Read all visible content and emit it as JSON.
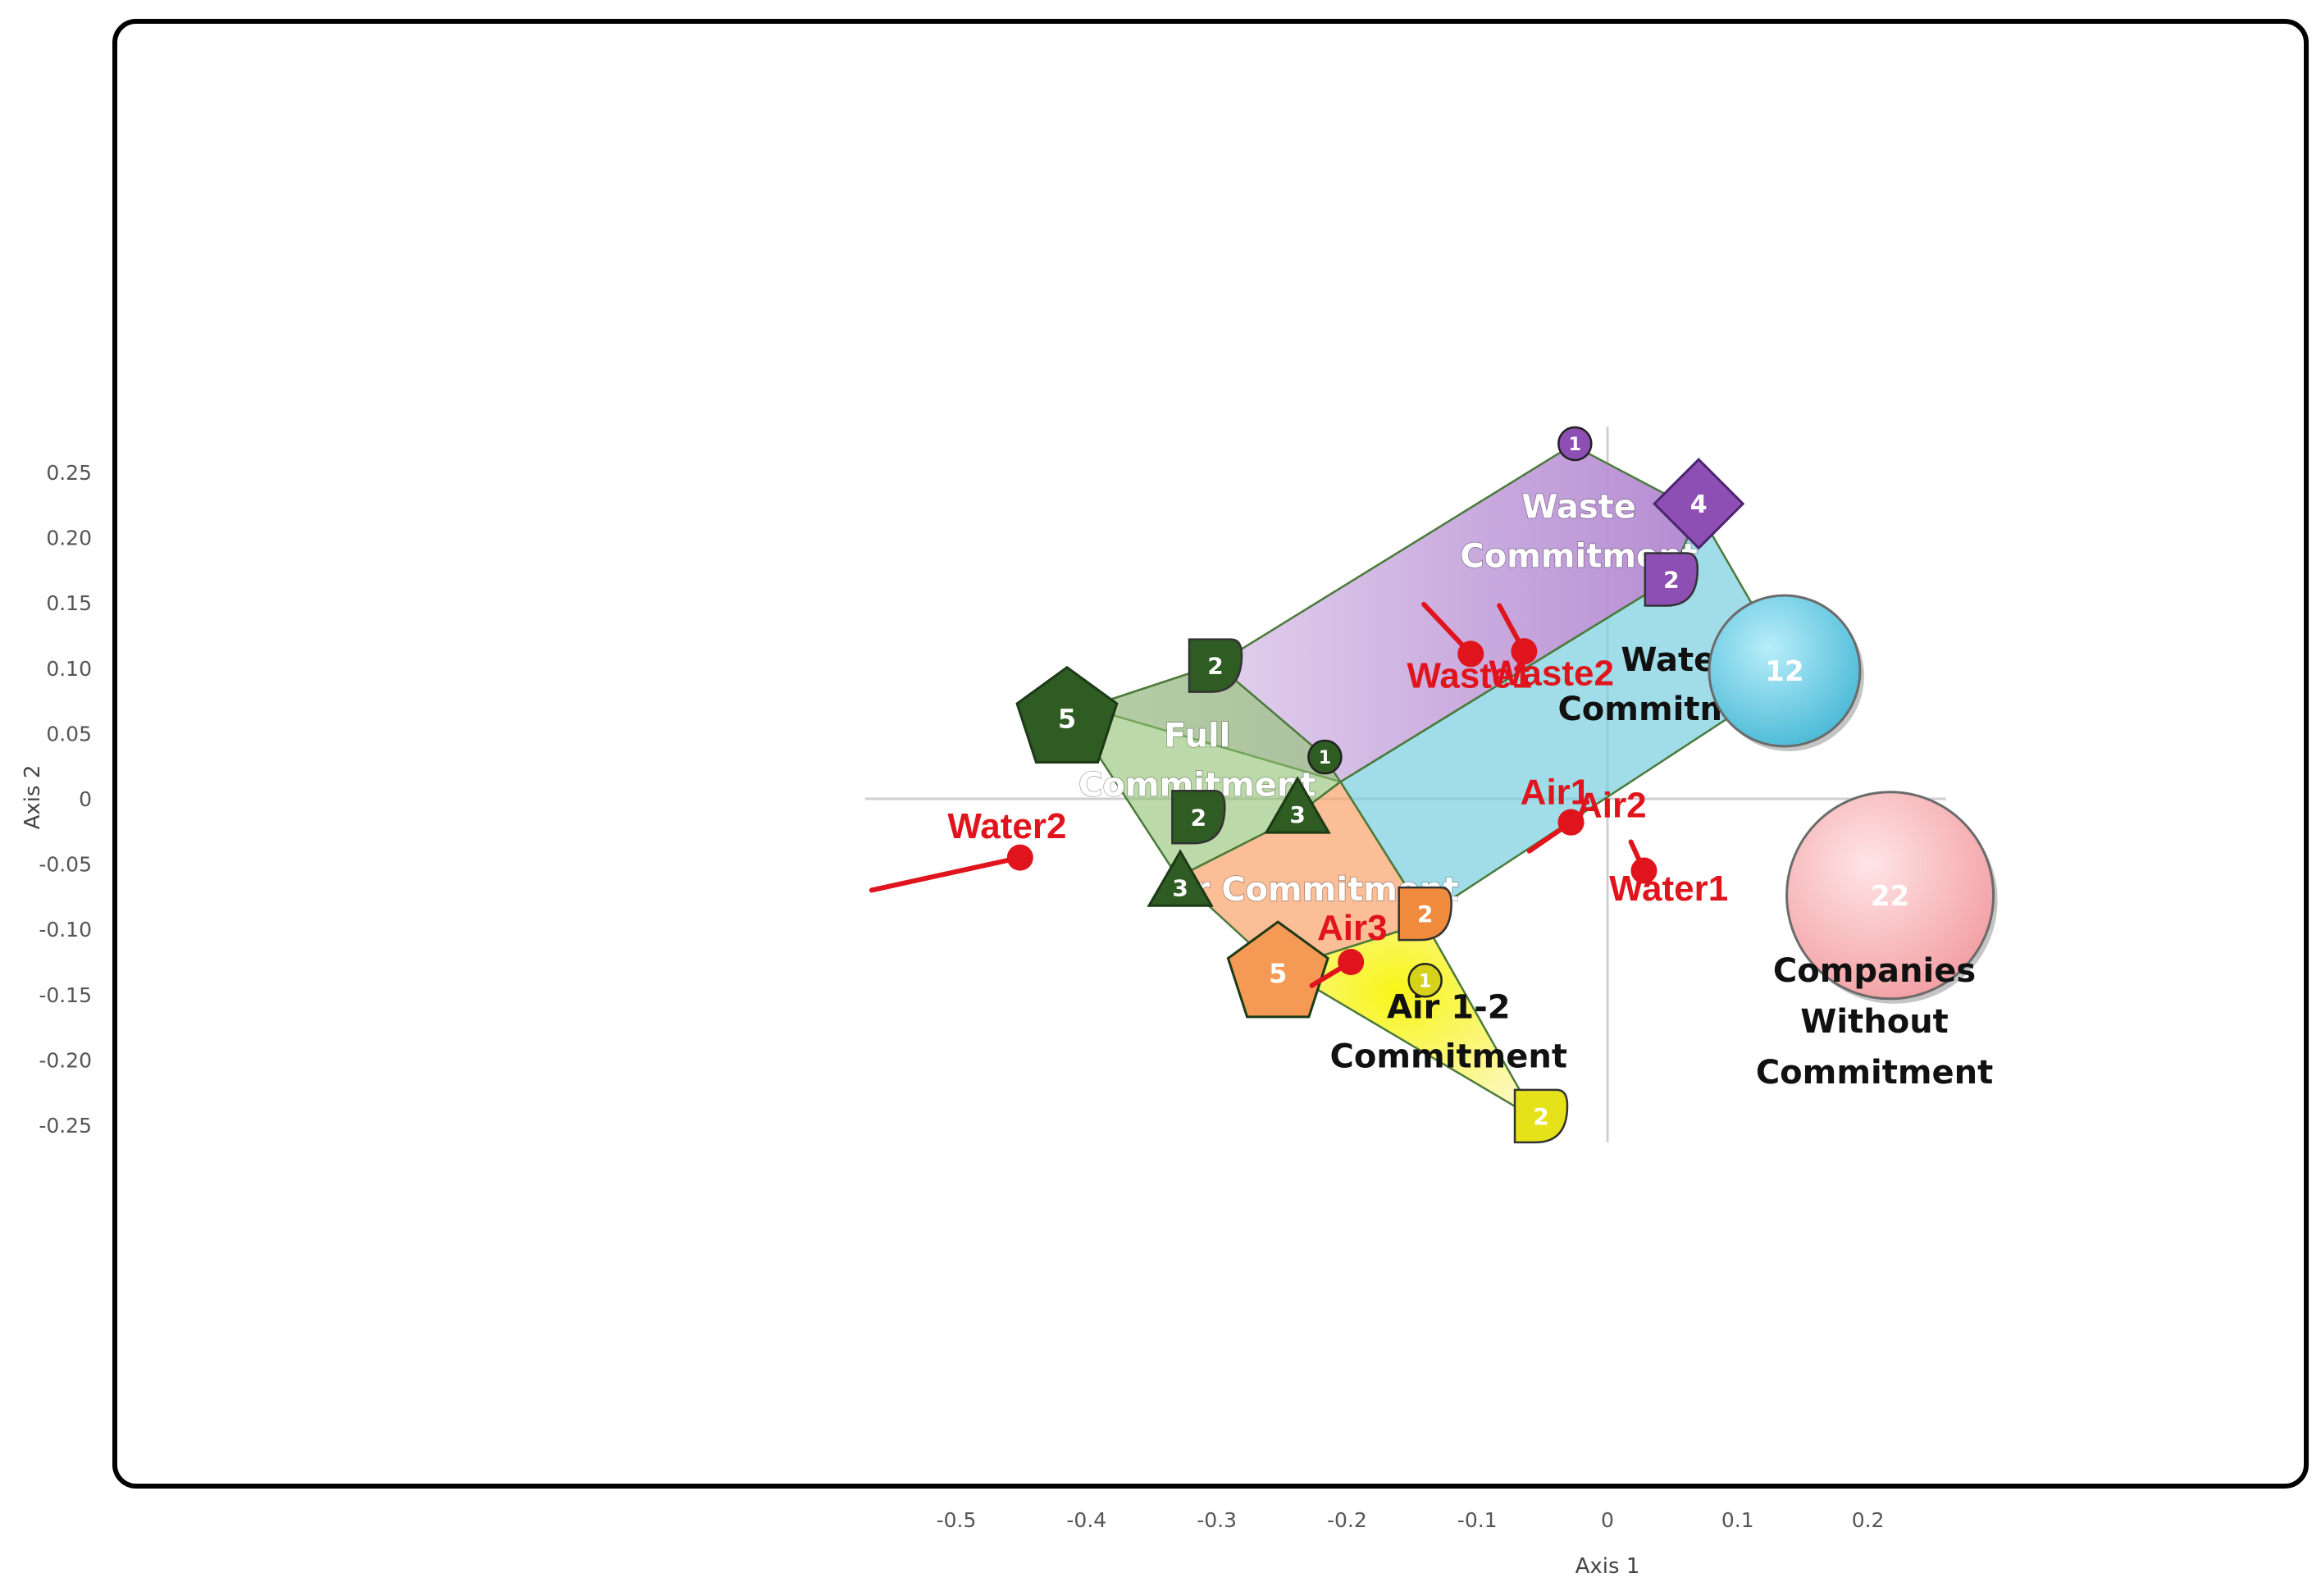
{
  "colors": {
    "full": "#8fc26f",
    "waste": "#b98fd4",
    "water": "#78cfe0",
    "air": "#f9a36b",
    "air12": "#f8f263",
    "no_commit": "#f6b3b5",
    "variable": "#e0141c",
    "dark_green": "#2e5c23"
  },
  "chart_data": {
    "type": "scatter",
    "title": "",
    "xlabel": "Axis 1",
    "ylabel": "Axis 2",
    "xlim": [
      -0.57,
      0.26
    ],
    "ylim": [
      -0.263,
      0.285
    ],
    "xticks": [
      -0.5,
      -0.4,
      -0.3,
      -0.2,
      -0.1,
      0,
      0.1,
      0.2
    ],
    "xtick_labels": [
      "-0.5",
      "-0.4",
      "-0.3",
      "-0.2",
      "-0.1",
      "0",
      "0.1",
      "0.2"
    ],
    "yticks": [
      0.25,
      0.2,
      0.15,
      0.1,
      0.05,
      0,
      -0.05,
      -0.1,
      -0.15,
      -0.2,
      -0.25
    ],
    "ytick_labels": [
      "0.25",
      "0.20",
      "0.15",
      "0.10",
      "0.05",
      "0",
      "-0.05",
      "-0.10",
      "-0.15",
      "-0.20",
      "-0.25"
    ],
    "grid": false,
    "reference_lines": [
      0,
      0
    ],
    "regions": [
      {
        "key": "waste",
        "label_lines": [
          "Waste",
          "Commitment"
        ],
        "label_color": "#ffffff",
        "label_pos": [
          -0.022,
          0.215
        ],
        "polygon": [
          [
            -0.027,
            0.271
          ],
          [
            0.07,
            0.22
          ],
          [
            0.048,
            0.168
          ],
          [
            -0.205,
            0.013
          ],
          [
            -0.4,
            0.07
          ],
          [
            -0.3,
            0.103
          ]
        ]
      },
      {
        "key": "water",
        "label_lines": [
          "Water",
          "Commitment"
        ],
        "label_color": "#111111",
        "label_pos": [
          0.053,
          0.098
        ],
        "polygon": [
          [
            0.07,
            0.22
          ],
          [
            0.125,
            0.125
          ],
          [
            0.125,
            0.083
          ],
          [
            -0.14,
            -0.09
          ],
          [
            -0.205,
            0.013
          ],
          [
            0.048,
            0.168
          ]
        ]
      },
      {
        "key": "full",
        "label_lines": [
          "Full",
          "Commitment"
        ],
        "label_color": "#ffffff",
        "label_pos": [
          -0.315,
          0.04
        ],
        "polygon": [
          [
            -0.4,
            0.07
          ],
          [
            -0.3,
            0.103
          ],
          [
            -0.22,
            0.035
          ],
          [
            -0.205,
            0.013
          ],
          [
            -0.245,
            -0.017
          ],
          [
            -0.33,
            -0.06
          ],
          [
            -0.415,
            0.07
          ]
        ]
      },
      {
        "key": "air",
        "label_lines": [
          "Air Commitment"
        ],
        "label_color": "#ffffff",
        "label_pos": [
          -0.23,
          -0.078
        ],
        "polygon": [
          [
            -0.205,
            0.013
          ],
          [
            -0.14,
            -0.09
          ],
          [
            -0.14,
            -0.095
          ],
          [
            -0.25,
            -0.13
          ],
          [
            -0.27,
            -0.115
          ],
          [
            -0.33,
            -0.06
          ],
          [
            -0.245,
            -0.017
          ]
        ]
      },
      {
        "key": "air12",
        "label_lines": [
          "Air 1-2",
          "Commitment"
        ],
        "label_color": "#111111",
        "label_pos": [
          -0.122,
          -0.168
        ],
        "polygon": [
          [
            -0.14,
            -0.095
          ],
          [
            -0.055,
            -0.245
          ],
          [
            -0.25,
            -0.13
          ]
        ]
      }
    ],
    "markers": [
      {
        "shape": "pentagon",
        "label": "5",
        "x": -0.415,
        "y": 0.063,
        "size": 64,
        "color": "#2e5c23"
      },
      {
        "shape": "leaf",
        "label": "2",
        "x": -0.301,
        "y": 0.102,
        "size": 32,
        "color": "#2e5c23"
      },
      {
        "shape": "circle",
        "label": "1",
        "x": -0.217,
        "y": 0.032,
        "size": 20,
        "color": "#2e5c23"
      },
      {
        "shape": "leaf",
        "label": "2",
        "x": -0.314,
        "y": -0.014,
        "size": 32,
        "color": "#2e5c23"
      },
      {
        "shape": "triangle",
        "label": "3",
        "x": -0.238,
        "y": -0.007,
        "size": 44,
        "color": "#2e5c23"
      },
      {
        "shape": "triangle",
        "label": "3",
        "x": -0.328,
        "y": -0.063,
        "size": 44,
        "color": "#2e5c23"
      },
      {
        "shape": "circle",
        "label": "1",
        "x": -0.025,
        "y": 0.272,
        "size": 20,
        "color": "#8e4fb5"
      },
      {
        "shape": "diamond",
        "label": "4",
        "x": 0.07,
        "y": 0.226,
        "size": 54,
        "color": "#8e4fb5"
      },
      {
        "shape": "leaf",
        "label": "2",
        "x": 0.049,
        "y": 0.168,
        "size": 32,
        "color": "#8e4fb5"
      },
      {
        "shape": "leaf",
        "label": "2",
        "x": -0.14,
        "y": -0.088,
        "size": 32,
        "color": "#f08a3c"
      },
      {
        "shape": "pentagon",
        "label": "5",
        "x": -0.253,
        "y": -0.132,
        "size": 64,
        "color": "#f59a55"
      },
      {
        "shape": "circle",
        "label": "1",
        "x": -0.14,
        "y": -0.139,
        "size": 20,
        "color": "#d6d21a"
      },
      {
        "shape": "leaf",
        "label": "2",
        "x": -0.051,
        "y": -0.243,
        "size": 32,
        "color": "#e6e21a"
      },
      {
        "shape": "bubble",
        "label": "12",
        "x": 0.136,
        "y": 0.098,
        "size": 92,
        "color": "#6fd1e6"
      },
      {
        "shape": "bubble",
        "label": "22",
        "x": 0.217,
        "y": -0.074,
        "size": 126,
        "color": "#f6b3b5"
      }
    ],
    "variables": [
      {
        "name": "Waste1",
        "x": -0.105,
        "y": 0.111,
        "tail": [
          -0.141,
          0.149
        ],
        "label_pos": [
          -0.106,
          0.085
        ]
      },
      {
        "name": "Waste2",
        "x": -0.064,
        "y": 0.113,
        "tail": [
          -0.083,
          0.148
        ],
        "label_pos": [
          -0.043,
          0.087
        ]
      },
      {
        "name": "Air1",
        "x": -0.028,
        "y": -0.018,
        "tail": [
          -0.06,
          -0.04
        ],
        "label_pos": [
          -0.04,
          -0.004
        ]
      },
      {
        "name": "Air2",
        "x": -0.028,
        "y": -0.018,
        "tail": [
          -0.028,
          -0.018
        ],
        "label_pos": [
          0.003,
          -0.014
        ]
      },
      {
        "name": "Water1",
        "x": 0.028,
        "y": -0.055,
        "tail": [
          0.018,
          -0.033
        ],
        "label_pos": [
          0.047,
          -0.078
        ]
      },
      {
        "name": "Water2",
        "x": -0.451,
        "y": -0.045,
        "tail": [
          -0.565,
          -0.07
        ],
        "label_pos": [
          -0.461,
          -0.03
        ]
      },
      {
        "name": "Air3",
        "x": -0.197,
        "y": -0.125,
        "tail": [
          -0.227,
          -0.143
        ],
        "label_pos": [
          -0.196,
          -0.108
        ]
      }
    ],
    "no_commitment_label_lines": [
      "Companies",
      "Without",
      "Commitment"
    ],
    "no_commitment_label_pos": [
      0.205,
      -0.14
    ]
  }
}
